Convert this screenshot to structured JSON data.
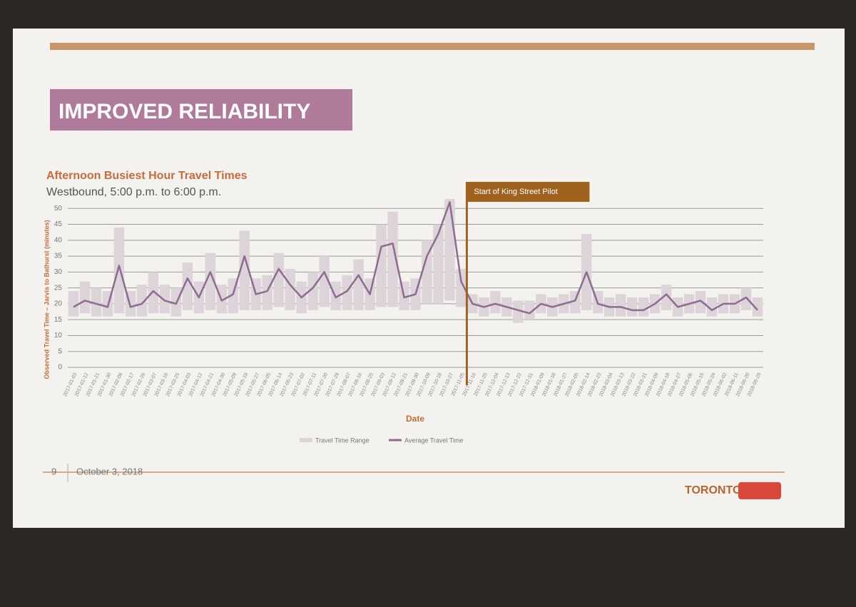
{
  "slide": {
    "title": "IMPROVED RELIABILITY",
    "page": "9",
    "date": "October 3, 2018",
    "logo": "TORONTO"
  },
  "chart_data": {
    "type": "line",
    "title": "Afternoon Busiest Hour Travel Times",
    "subtitle": "Westbound, 5:00 p.m. to 6:00 p.m.",
    "x_label": "Date",
    "y_label": "Observed Travel Time – Jarvis to Bathurst (minutes)",
    "annotation": "Start of King Street Pilot",
    "categories": [
      "2017-01-03",
      "2017-01-12",
      "2017-01-21",
      "2017-01-30",
      "2017-02-08",
      "2017-02-17",
      "2017-02-26",
      "2017-03-07",
      "2017-03-16",
      "2017-03-25",
      "2017-04-03",
      "2017-04-12",
      "2017-04-21",
      "2017-04-30",
      "2017-05-09",
      "2017-05-18",
      "2017-05-27",
      "2017-06-05",
      "2017-06-14",
      "2017-06-23",
      "2017-07-02",
      "2017-07-11",
      "2017-07-20",
      "2017-07-29",
      "2017-08-07",
      "2017-08-16",
      "2017-08-25",
      "2017-09-03",
      "2017-09-12",
      "2017-09-21",
      "2017-09-30",
      "2017-10-09",
      "2017-10-18",
      "2017-10-27",
      "2017-11-05",
      "2017-11-16",
      "2017-11-25",
      "2017-12-04",
      "2017-12-13",
      "2017-12-22",
      "2017-12-31",
      "2018-01-09",
      "2018-01-18",
      "2018-01-27",
      "2018-02-05",
      "2018-02-14",
      "2018-02-23",
      "2018-03-04",
      "2018-03-13",
      "2018-03-22",
      "2018-03-31",
      "2018-04-09",
      "2018-04-18",
      "2018-04-27",
      "2018-05-06",
      "2018-05-15",
      "2018-05-24",
      "2018-06-02",
      "2018-06-11",
      "2018-06-20",
      "2018-06-29"
    ],
    "series": [
      {
        "name": "Travel Time Range",
        "color": "#dcd4d8",
        "low": [
          16,
          17,
          16,
          16,
          17,
          16,
          16,
          17,
          17,
          16,
          18,
          17,
          18,
          17,
          17,
          18,
          18,
          18,
          19,
          18,
          17,
          18,
          19,
          18,
          18,
          18,
          18,
          19,
          19,
          18,
          18,
          20,
          20,
          21,
          19,
          17,
          16,
          17,
          16,
          14,
          15,
          17,
          16,
          17,
          17,
          18,
          17,
          16,
          16,
          16,
          16,
          17,
          18,
          16,
          17,
          17,
          16,
          17,
          17,
          18,
          16
        ],
        "high": [
          24,
          27,
          25,
          24,
          44,
          24,
          26,
          30,
          26,
          25,
          33,
          27,
          36,
          26,
          28,
          43,
          28,
          29,
          36,
          31,
          27,
          30,
          35,
          27,
          29,
          34,
          28,
          45,
          49,
          27,
          28,
          40,
          45,
          53,
          31,
          23,
          22,
          24,
          22,
          21,
          21,
          23,
          22,
          23,
          24,
          42,
          24,
          22,
          23,
          22,
          22,
          23,
          26,
          22,
          23,
          24,
          22,
          23,
          23,
          25,
          22
        ]
      },
      {
        "name": "Average Travel Time",
        "color": "#8e6b91",
        "values": [
          19,
          21,
          20,
          19,
          32,
          19,
          20,
          24,
          21,
          20,
          28,
          22,
          30,
          21,
          23,
          35,
          23,
          24,
          31,
          26,
          22,
          25,
          30,
          22,
          24,
          29,
          23,
          38,
          39,
          22,
          23,
          35,
          42,
          52,
          27,
          20,
          19,
          20,
          19,
          18,
          17,
          20,
          19,
          20,
          21,
          30,
          20,
          19,
          19,
          18,
          18,
          20,
          23,
          19,
          20,
          21,
          18,
          20,
          20,
          22,
          18
        ]
      }
    ],
    "ylim": [
      0,
      55
    ],
    "yticks": [
      0,
      5,
      10,
      15,
      20,
      25,
      30,
      35,
      40,
      45,
      50
    ],
    "grid": true
  }
}
